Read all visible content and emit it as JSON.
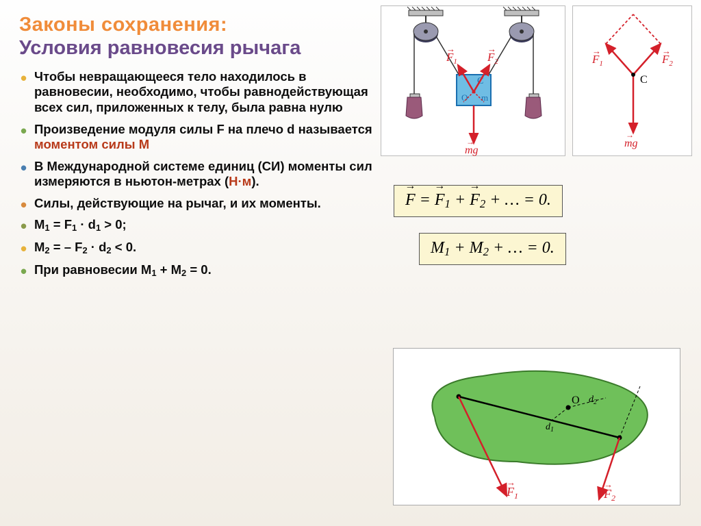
{
  "colors": {
    "title_a": "#f08c3a",
    "title_b": "#6a4a8a",
    "accent": "#b83a1a",
    "formula_bg": "#fcf6d2",
    "diagram_bg": "#ffffff",
    "pulley_metal": "#7a7a9a",
    "pulley_shadow": "#3a3a5a",
    "block_fill": "#6fbde4",
    "block_stroke": "#1a6fb0",
    "weight_body": "#9a4a6a",
    "weight_top": "#c0c0c0",
    "force_red": "#d4202a",
    "moment_blob": "#6fc05a",
    "moment_blob_stroke": "#3a7a2a"
  },
  "titles": {
    "line1": "Законы сохранения:",
    "line2": "Условия равновесия рычага"
  },
  "bullets": [
    {
      "cls": "b-yellow",
      "html": "Чтобы невращающееся тело находилось в равновесии, необходимо, чтобы равнодействующая всех сил, приложенных к телу, была равна нулю"
    },
    {
      "cls": "b-green",
      "html": "Произведение модуля силы F на плечо d называется <span class='accent'>моментом силы M</span>"
    },
    {
      "cls": "b-blue",
      "html": "В Международной системе единиц (СИ) моменты сил измеряются в ньютон-метрах (<span class='accent'>Н·м</span>)."
    },
    {
      "cls": "b-orange",
      "html": "Силы, действующие на рычаг, и их моменты."
    },
    {
      "cls": "b-olive",
      "html": "M<sub>1</sub> = F<sub>1</sub> · d<sub>1</sub> > 0;"
    },
    {
      "cls": "b-yellow",
      "html": "M<sub>2</sub> = – F<sub>2</sub> · d<sub>2</sub> < 0."
    },
    {
      "cls": "b-green",
      "html": "При равновесии M<sub>1</sub> + M<sub>2</sub> = 0."
    }
  ],
  "formulas": {
    "f_sum": {
      "text_parts": [
        "F",
        " = ",
        "F",
        "1",
        " + ",
        "F",
        "2",
        " + … = 0."
      ],
      "vec_idx": [
        0,
        2,
        5
      ]
    },
    "m_sum": "M₁ + M₂ + … = 0."
  },
  "pulley_diagram": {
    "labels": {
      "F1": "F",
      "F2": "F",
      "C": "C",
      "O": "O",
      "m": "m",
      "mg": "mg"
    },
    "subs": {
      "F1": "1",
      "F2": "2"
    }
  },
  "resultant_diagram": {
    "labels": {
      "F1": "F",
      "F2": "F",
      "C": "C",
      "mg": "mg"
    },
    "subs": {
      "F1": "1",
      "F2": "2"
    }
  },
  "moment_diagram": {
    "labels": {
      "O": "O",
      "d1": "d",
      "d2": "d",
      "F1": "F",
      "F2": "F"
    },
    "subs": {
      "d1": "1",
      "d2": "2",
      "F1": "1",
      "F2": "2"
    }
  }
}
